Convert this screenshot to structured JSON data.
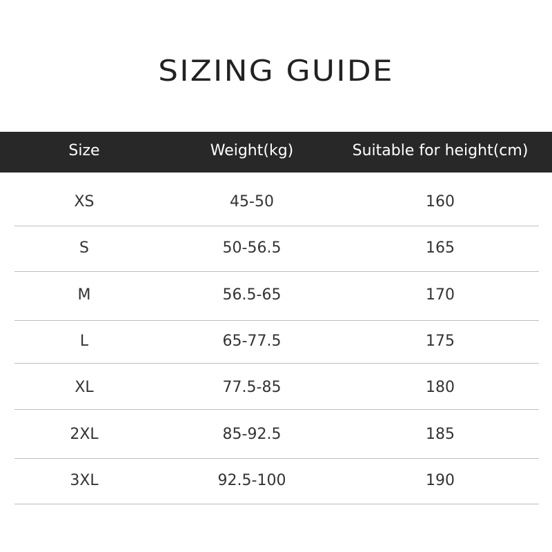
{
  "title": "SIZING GUIDE",
  "table": {
    "headers": [
      "Size",
      "Weight(kg)",
      "Suitable for height(cm)"
    ],
    "rows": [
      [
        "XS",
        "45-50",
        "160"
      ],
      [
        "S",
        "50-56.5",
        "165"
      ],
      [
        "M",
        "56.5-65",
        "170"
      ],
      [
        "L",
        "65-77.5",
        "175"
      ],
      [
        "XL",
        "77.5-85",
        "180"
      ],
      [
        "2XL",
        "85-92.5",
        "185"
      ],
      [
        "3XL",
        "92.5-100",
        "190"
      ]
    ]
  }
}
